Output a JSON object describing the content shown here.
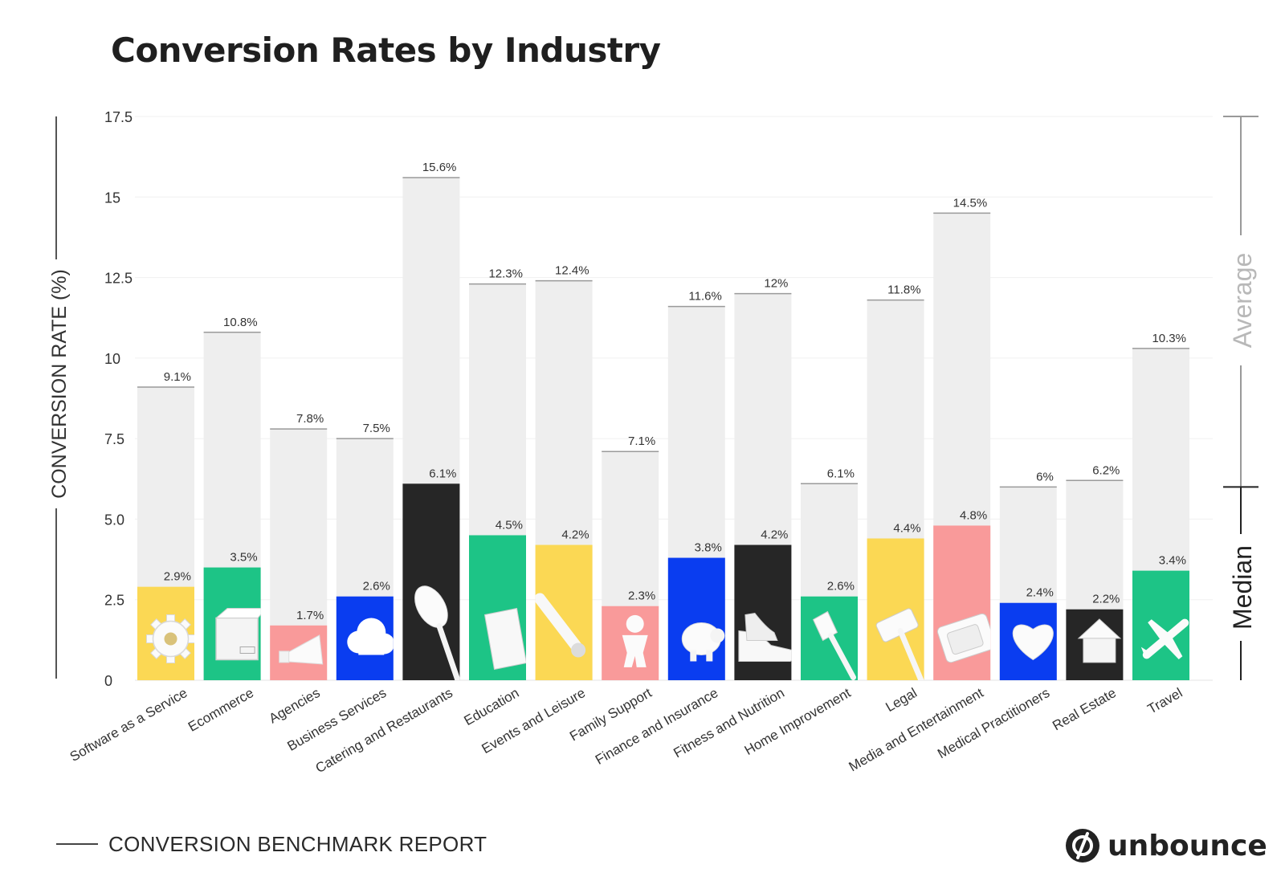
{
  "header": {
    "title": "Conversion Rates by Industry"
  },
  "footer": {
    "report_label": "CONVERSION BENCHMARK REPORT",
    "brand": "unbounce"
  },
  "chart_data": {
    "type": "bar",
    "title": "Conversion Rates by Industry",
    "ylabel": "CONVERSION RATE (%)",
    "xlabel": "",
    "ylim": [
      0,
      17.5
    ],
    "yticks": [
      0,
      2.5,
      5.0,
      7.5,
      10,
      12.5,
      15,
      17.5
    ],
    "ytick_labels": [
      "0",
      "2.5",
      "5.0",
      "7.5",
      "10",
      "12.5",
      "15",
      "17.5"
    ],
    "grid": true,
    "side_bracket_labels": [
      "Average",
      "Median"
    ],
    "categories": [
      "Software as a Service",
      "Ecommerce",
      "Agencies",
      "Business Services",
      "Catering and Restaurants",
      "Education",
      "Events and Leisure",
      "Family Support",
      "Finance and Insurance",
      "Fitness and Nutrition",
      "Home Improvement",
      "Legal",
      "Media and Entertainment",
      "Medical Practitioners",
      "Real Estate",
      "Travel"
    ],
    "series": [
      {
        "name": "Average",
        "color": "#eeeeee",
        "values": [
          9.1,
          10.8,
          7.8,
          7.5,
          15.6,
          12.3,
          12.4,
          7.1,
          11.6,
          12,
          6.1,
          11.8,
          14.5,
          6,
          6.2,
          10.3
        ],
        "labels": [
          "9.1%",
          "10.8%",
          "7.8%",
          "7.5%",
          "15.6%",
          "12.3%",
          "12.4%",
          "7.1%",
          "11.6%",
          "12%",
          "6.1%",
          "11.8%",
          "14.5%",
          "6%",
          "6.2%",
          "10.3%"
        ]
      },
      {
        "name": "Median",
        "values": [
          2.9,
          3.5,
          1.7,
          2.6,
          6.1,
          4.5,
          4.2,
          2.3,
          3.8,
          4.2,
          2.6,
          4.4,
          4.8,
          2.4,
          2.2,
          3.4
        ],
        "labels": [
          "2.9%",
          "3.5%",
          "1.7%",
          "2.6%",
          "6.1%",
          "4.5%",
          "4.2%",
          "2.3%",
          "3.8%",
          "4.2%",
          "2.6%",
          "4.4%",
          "4.8%",
          "2.4%",
          "2.2%",
          "3.4%"
        ],
        "colors": [
          "#fbd854",
          "#1dc486",
          "#f99a9a",
          "#0a3df0",
          "#262626",
          "#1dc486",
          "#fbd854",
          "#f99a9a",
          "#0a3df0",
          "#262626",
          "#1dc486",
          "#fbd854",
          "#f99a9a",
          "#0a3df0",
          "#262626",
          "#1dc486"
        ],
        "icons": [
          "gear-icon",
          "box-icon",
          "megaphone-icon",
          "cloud-icon",
          "spoon-icon",
          "book-icon",
          "microphone-icon",
          "person-icon",
          "piggy-bank-icon",
          "sneakers-icon",
          "paintbrush-icon",
          "gavel-icon",
          "tv-icon",
          "heart-icon",
          "house-icon",
          "airplane-icon"
        ]
      }
    ]
  }
}
